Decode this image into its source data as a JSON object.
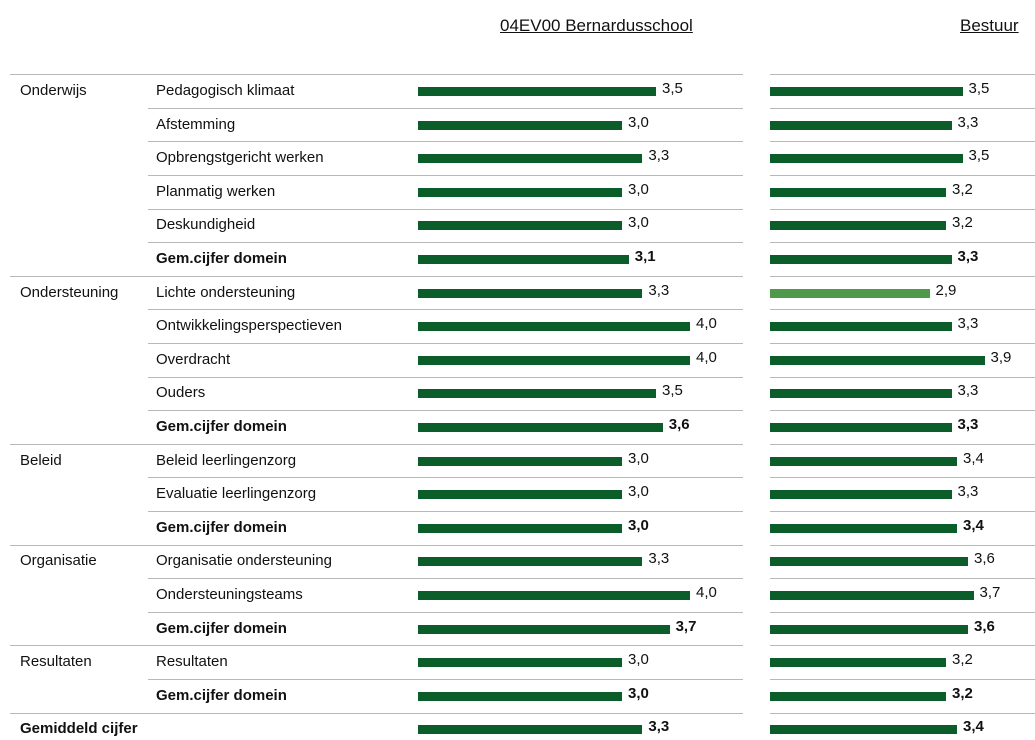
{
  "headers": [
    "04EV00 Bernardusschool",
    "Bestuur"
  ],
  "xlim": [
    0,
    4
  ],
  "color": "#0b5e2a",
  "rows": [
    {
      "domain": "Onderwijs",
      "label": "Pedagogisch klimaat",
      "values": [
        3.5,
        3.5
      ],
      "value_labels": [
        "3,5",
        "3,5"
      ]
    },
    {
      "label": "Afstemming",
      "values": [
        3.0,
        3.3
      ],
      "value_labels": [
        "3,0",
        "3,3"
      ]
    },
    {
      "label": "Opbrengstgericht werken",
      "values": [
        3.3,
        3.5
      ],
      "value_labels": [
        "3,3",
        "3,5"
      ]
    },
    {
      "label": "Planmatig werken",
      "values": [
        3.0,
        3.2
      ],
      "value_labels": [
        "3,0",
        "3,2"
      ]
    },
    {
      "label": "Deskundigheid",
      "values": [
        3.0,
        3.2
      ],
      "value_labels": [
        "3,0",
        "3,2"
      ]
    },
    {
      "label": "Gem.cijfer domein",
      "bold": true,
      "values": [
        3.1,
        3.3
      ],
      "value_labels": [
        "3,1",
        "3,3"
      ]
    },
    {
      "domain": "Ondersteuning",
      "label": "Lichte ondersteuning",
      "values": [
        3.3,
        2.9
      ],
      "value_labels": [
        "3,3",
        "2,9"
      ],
      "colors": [
        "#0b5e2a",
        "#4e9a4a"
      ]
    },
    {
      "label": "Ontwikkelingsperspectieven",
      "values": [
        4.0,
        3.3
      ],
      "value_labels": [
        "4,0",
        "3,3"
      ]
    },
    {
      "label": "Overdracht",
      "values": [
        4.0,
        3.9
      ],
      "value_labels": [
        "4,0",
        "3,9"
      ]
    },
    {
      "label": "Ouders",
      "values": [
        3.5,
        3.3
      ],
      "value_labels": [
        "3,5",
        "3,3"
      ]
    },
    {
      "label": "Gem.cijfer domein",
      "bold": true,
      "values": [
        3.6,
        3.3
      ],
      "value_labels": [
        "3,6",
        "3,3"
      ]
    },
    {
      "domain": "Beleid",
      "label": "Beleid leerlingenzorg",
      "values": [
        3.0,
        3.4
      ],
      "value_labels": [
        "3,0",
        "3,4"
      ]
    },
    {
      "label": "Evaluatie leerlingenzorg",
      "values": [
        3.0,
        3.3
      ],
      "value_labels": [
        "3,0",
        "3,3"
      ]
    },
    {
      "label": "Gem.cijfer domein",
      "bold": true,
      "values": [
        3.0,
        3.4
      ],
      "value_labels": [
        "3,0",
        "3,4"
      ]
    },
    {
      "domain": "Organisatie",
      "label": "Organisatie ondersteuning",
      "values": [
        3.3,
        3.6
      ],
      "value_labels": [
        "3,3",
        "3,6"
      ]
    },
    {
      "label": "Ondersteuningsteams",
      "values": [
        4.0,
        3.7
      ],
      "value_labels": [
        "4,0",
        "3,7"
      ]
    },
    {
      "label": "Gem.cijfer domein",
      "bold": true,
      "values": [
        3.7,
        3.6
      ],
      "value_labels": [
        "3,7",
        "3,6"
      ]
    },
    {
      "domain": "Resultaten",
      "label": "Resultaten",
      "values": [
        3.0,
        3.2
      ],
      "value_labels": [
        "3,0",
        "3,2"
      ]
    },
    {
      "label": "Gem.cijfer domein",
      "bold": true,
      "values": [
        3.0,
        3.2
      ],
      "value_labels": [
        "3,0",
        "3,2"
      ]
    },
    {
      "domain": "Gemiddeld cijfer",
      "bold": true,
      "values": [
        3.3,
        3.4
      ],
      "value_labels": [
        "3,3",
        "3,4"
      ]
    }
  ]
}
